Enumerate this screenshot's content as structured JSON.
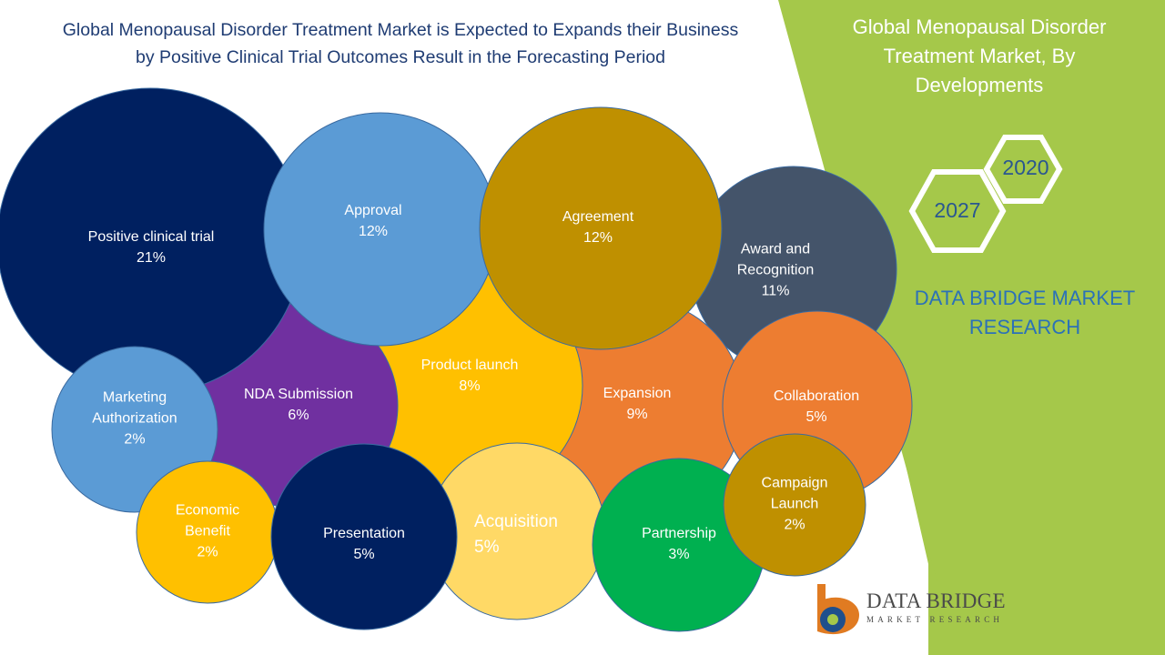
{
  "title": {
    "line1": "Global Menopausal Disorder Treatment Market is Expected to Expands their Business",
    "line2": "by Positive Clinical Trial Outcomes  Result in the Forecasting Period"
  },
  "side_panel": {
    "title_line1": "Global Menopausal Disorder",
    "title_line2": "Treatment  Market, By",
    "title_line3": "Developments",
    "year_start": "2020",
    "year_end": "2027",
    "brand_line1": "DATA BRIDGE MARKET",
    "brand_line2": "RESEARCH",
    "logo_text": "DATA BRIDGE",
    "logo_subtext": "MARKET RESEARCH",
    "panel_color": "#a5c84a"
  },
  "chart_data": {
    "type": "bubble",
    "unit": "%",
    "items": [
      {
        "label": "Award and\nRecognition",
        "value": 11,
        "color": "#44546a"
      },
      {
        "label": "Expansion",
        "value": 9,
        "color": "#ed7d31"
      },
      {
        "label": "Product launch",
        "value": 8,
        "color": "#ffc000"
      },
      {
        "label": "NDA Submission",
        "value": 6,
        "color": "#7030a0"
      },
      {
        "label": "Positive clinical trial",
        "value": 21,
        "color": "#002060"
      },
      {
        "label": "Approval",
        "value": 12,
        "color": "#5b9bd5"
      },
      {
        "label": "Agreement",
        "value": 12,
        "color": "#bf9000"
      },
      {
        "label": "Collaboration",
        "value": 5,
        "color": "#ed7d31"
      },
      {
        "label": "Acquisition",
        "value": 5,
        "color": "#ffd966"
      },
      {
        "label": "Marketing\nAuthorization",
        "value": 2,
        "color": "#5b9bd5"
      },
      {
        "label": "Partnership",
        "value": 3,
        "color": "#00b050"
      },
      {
        "label": "Economic\nBenefit",
        "value": 2,
        "color": "#ffc000"
      },
      {
        "label": "Presentation",
        "value": 5,
        "color": "#002060"
      },
      {
        "label": "Campaign\nLaunch",
        "value": 2,
        "color": "#bf9000"
      }
    ]
  }
}
